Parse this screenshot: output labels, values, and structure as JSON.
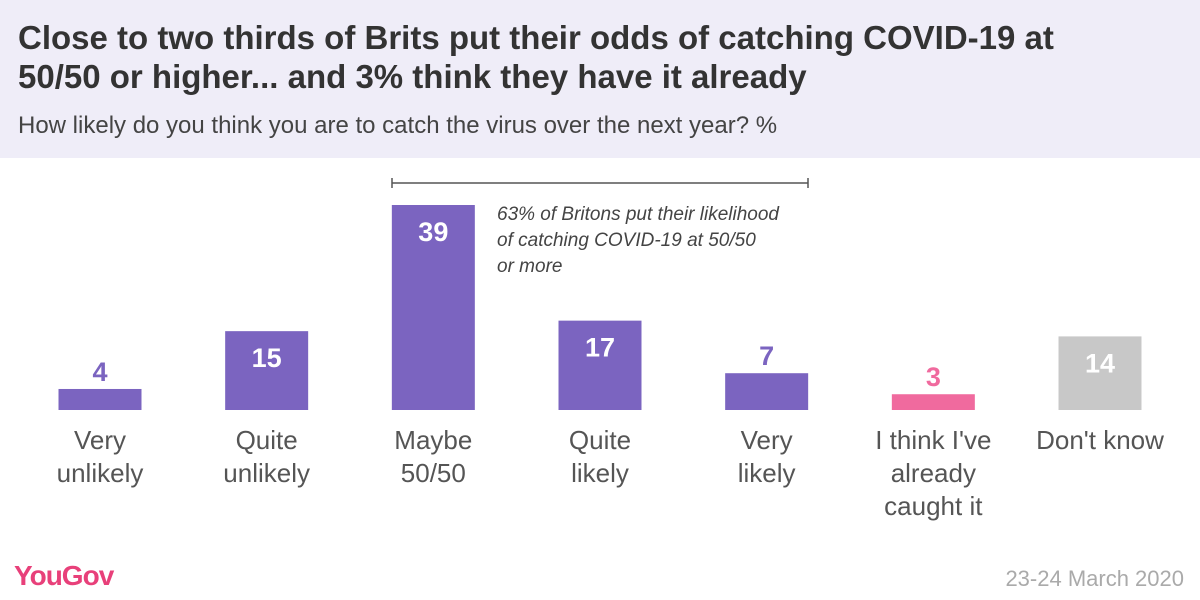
{
  "chart_data": {
    "type": "bar",
    "title": "Close to two thirds of Brits put their odds of catching COVID-19 at\n50/50 or higher... and 3% think they have it already",
    "subtitle": "How likely do you think you are to catch the virus over the next year? %",
    "categories": [
      "Very\nunlikely",
      "Quite\nunlikely",
      "Maybe\n50/50",
      "Quite\nlikely",
      "Very\nlikely",
      "I think I've\nalready\ncaught it",
      "Don't know"
    ],
    "values": [
      4,
      15,
      39,
      17,
      7,
      3,
      14
    ],
    "colors": [
      "#7b64c0",
      "#7b64c0",
      "#7b64c0",
      "#7b64c0",
      "#7b64c0",
      "#f06a9e",
      "#c8c8c8"
    ],
    "annotation": "63% of Britons put their likelihood\nof catching COVID-19 at 50/50\nor more",
    "brand": "YouGov",
    "date": "23-24 March 2020"
  }
}
